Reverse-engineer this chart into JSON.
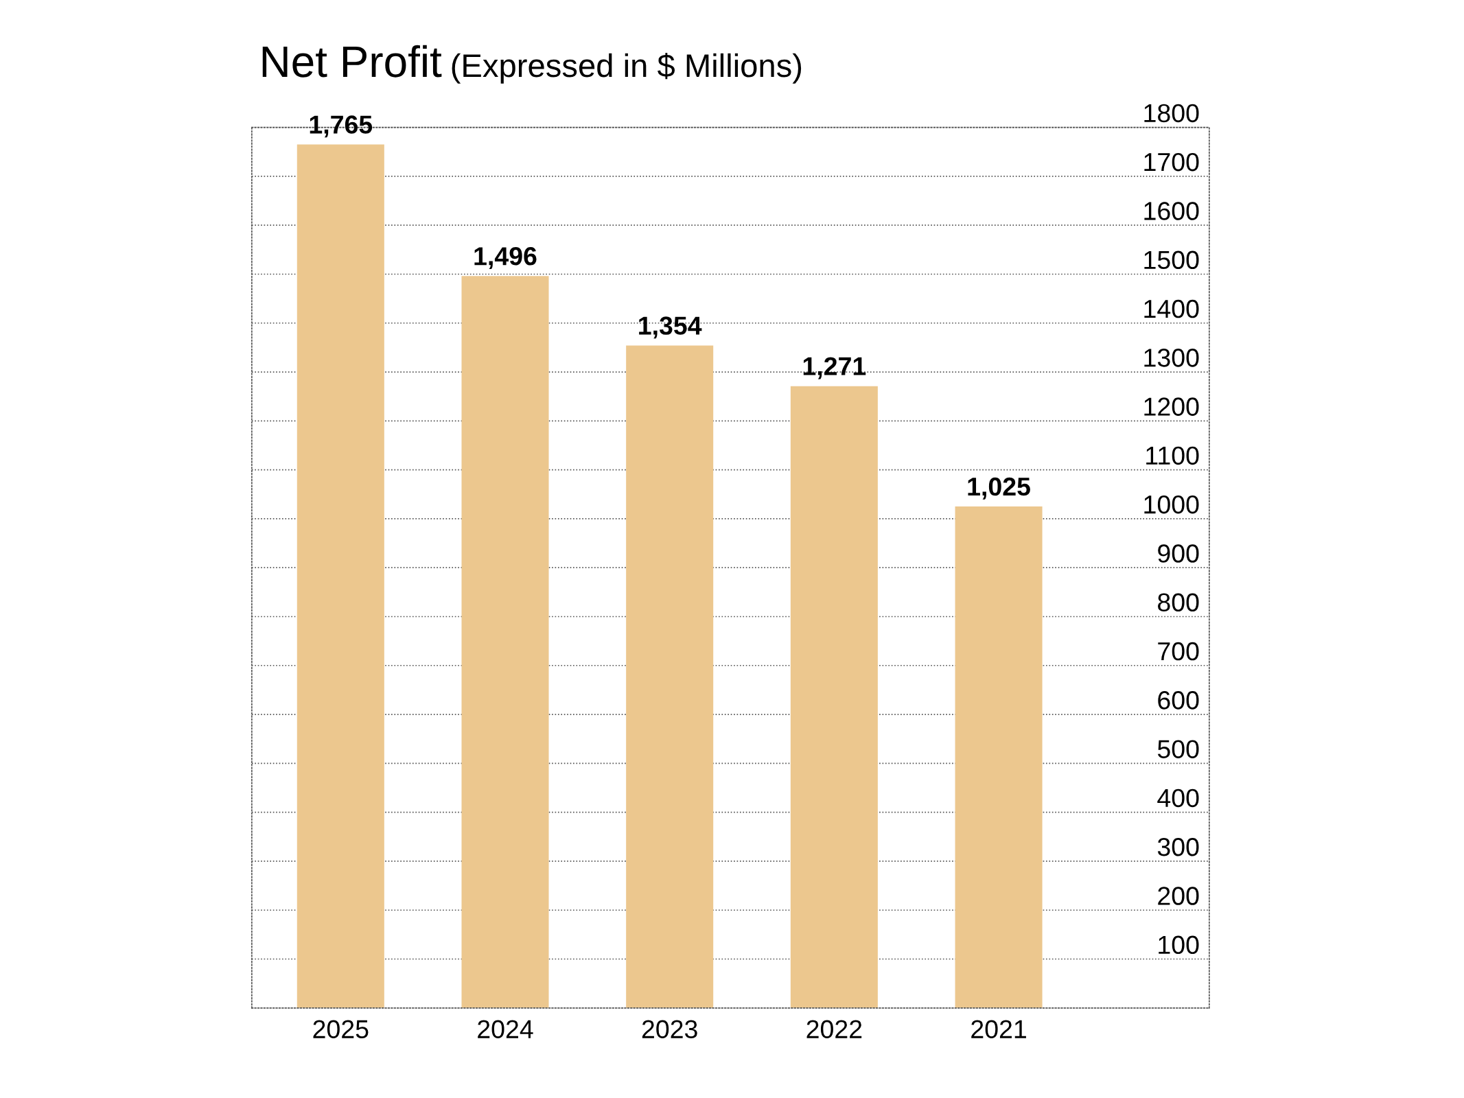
{
  "chart_data": {
    "type": "bar",
    "title": "Net Profit",
    "subtitle": "(Expressed in $ Millions)",
    "categories": [
      "2025",
      "2024",
      "2023",
      "2022",
      "2021"
    ],
    "values": [
      1765,
      1496,
      1354,
      1271,
      1025
    ],
    "value_labels": [
      "1,765",
      "1,496",
      "1,354",
      "1,271",
      "1,025"
    ],
    "color": "#ecc78e",
    "ylim": [
      0,
      1800
    ],
    "yticks": [
      100,
      200,
      300,
      400,
      500,
      600,
      700,
      800,
      900,
      1000,
      1100,
      1200,
      1300,
      1400,
      1500,
      1600,
      1700,
      1800
    ],
    "grid": "y",
    "line_style": "dotted"
  }
}
